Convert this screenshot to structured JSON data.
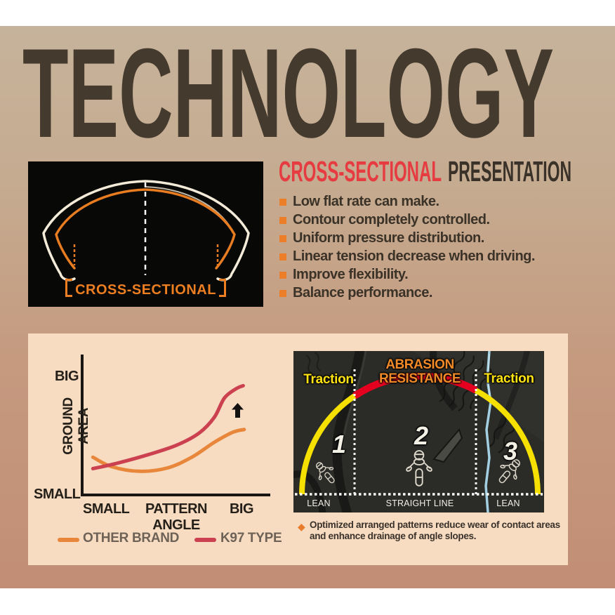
{
  "title": "TECHNOLOGY",
  "cross_section_figure": {
    "label_full": "【CROSS-SECTIONAL】",
    "label_text": "CROSS-SECTIONAL",
    "outline_color_outer": "#f3ead8",
    "outline_color_inner": "#e87c20"
  },
  "presentation": {
    "heading_accent": "CROSS-SECTIONAL",
    "heading_rest": "PRESENTATION",
    "heading_accent_color": "#e63b41",
    "bullets": [
      "Low flat rate can make.",
      "Contour completely controlled.",
      "Uniform pressure distribution.",
      "Linear tension decrease when driving.",
      "Improve flexibility.",
      "Balance performance."
    ]
  },
  "chart_data": {
    "type": "line",
    "title": "",
    "xlabel": "PATTERN ANGLE",
    "ylabel": "GROUND AREA",
    "x_min_label": "SMALL",
    "x_max_label": "BIG",
    "y_min_label": "SMALL",
    "y_max_label": "BIG",
    "axes": "qualitative (no numeric ticks); both axes run SMALL to BIG",
    "annotation": "black up arrow highlighting K97 TYPE gain at large pattern angle",
    "legend_position": "below chart",
    "series": [
      {
        "name": "OTHER BRAND",
        "color": "#e8873b",
        "points": [
          [
            0.05,
            0.27
          ],
          [
            0.15,
            0.2
          ],
          [
            0.3,
            0.165
          ],
          [
            0.45,
            0.19
          ],
          [
            0.58,
            0.27
          ],
          [
            0.7,
            0.38
          ],
          [
            0.8,
            0.455
          ],
          [
            0.86,
            0.475
          ]
        ]
      },
      {
        "name": "K97 TYPE",
        "color": "#cc4150",
        "points": [
          [
            0.05,
            0.185
          ],
          [
            0.18,
            0.225
          ],
          [
            0.35,
            0.29
          ],
          [
            0.5,
            0.36
          ],
          [
            0.62,
            0.45
          ],
          [
            0.7,
            0.565
          ],
          [
            0.755,
            0.71
          ],
          [
            0.82,
            0.78
          ],
          [
            0.855,
            0.8
          ]
        ]
      }
    ]
  },
  "tire_figure": {
    "zones": [
      {
        "number": "1",
        "top_label": "Traction",
        "mode": "LEAN"
      },
      {
        "number": "2",
        "top_label_line1": "ABRASION",
        "top_label_line2": "RESISTANCE",
        "mode": "STRAIGHT LINE"
      },
      {
        "number": "3",
        "top_label": "Traction",
        "mode": "LEAN"
      }
    ],
    "arc_colors": {
      "traction": "#f6e000",
      "abrasion": "#e50020"
    },
    "caption_line1": "Optimized arranged patterns reduce wear of contact areas",
    "caption_line2": "and enhance drainage of angle slopes."
  },
  "colors": {
    "background_gradient_top": "#c6b39b",
    "background_gradient_bottom": "#c28e75",
    "title_text": "#453a2e",
    "panel": "#f7dcc1",
    "bullet_square": "#ec7e2a",
    "dark_text": "#3b3228"
  }
}
